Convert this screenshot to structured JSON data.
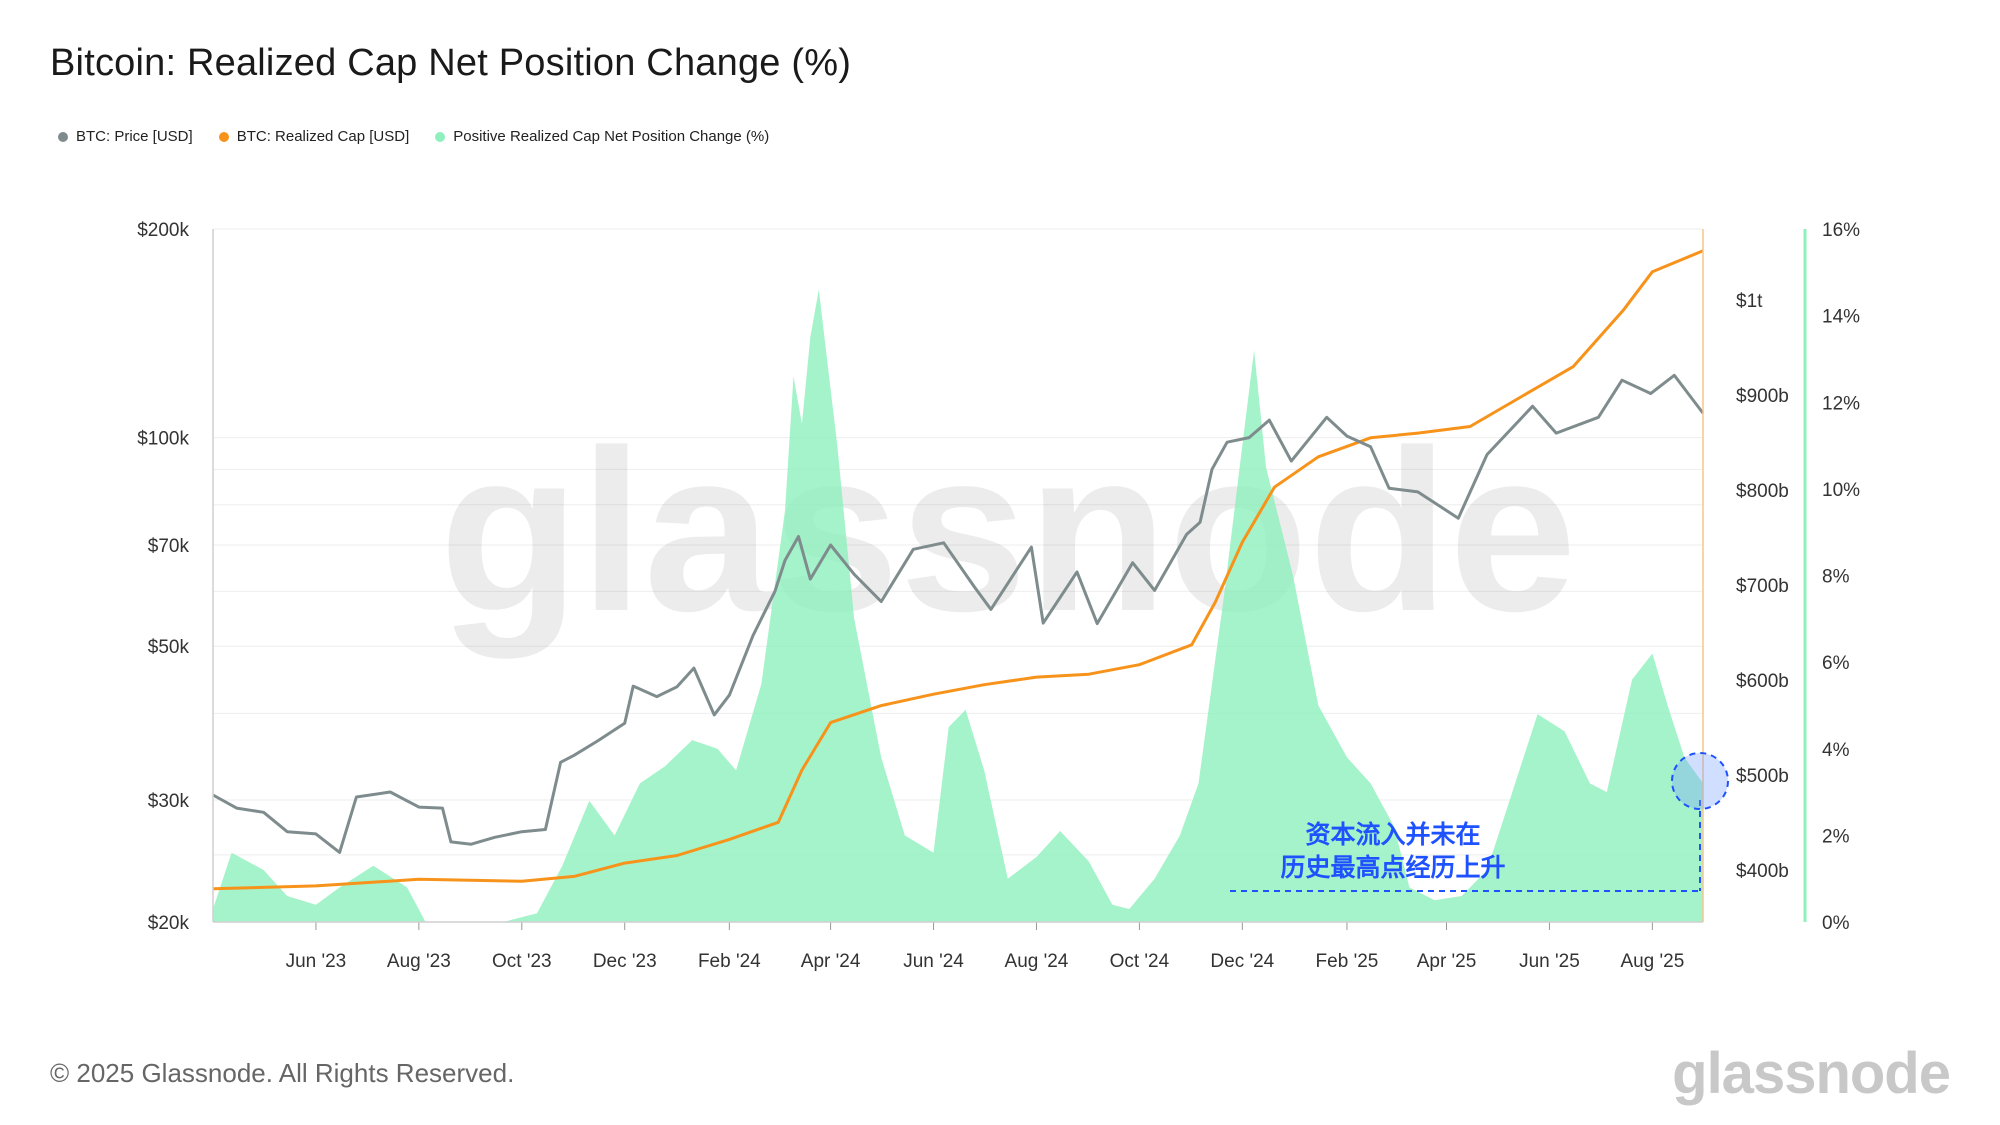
{
  "title": "Bitcoin: Realized Cap Net Position Change (%)",
  "legend": [
    {
      "label": "BTC: Price [USD]",
      "color": "#7f8c8d"
    },
    {
      "label": "BTC: Realized Cap [USD]",
      "color": "#f7931a"
    },
    {
      "label": "Positive Realized Cap Net Position Change (%)",
      "color": "#8ef0bd"
    }
  ],
  "footer": "© 2025 Glassnode. All Rights Reserved.",
  "brand": "glassnode",
  "annotation": {
    "line1": "资本流入并未在",
    "line2": "历史最高点经历上升"
  },
  "chart_data": {
    "type": "line",
    "x_ticks": [
      "Jun '23",
      "Aug '23",
      "Oct '23",
      "Dec '23",
      "Feb '24",
      "Apr '24",
      "Jun '24",
      "Aug '24",
      "Oct '24",
      "Dec '24",
      "Feb '25",
      "Apr '25",
      "Jun '25",
      "Aug '25"
    ],
    "y_left": {
      "scale": "log",
      "ticks": [
        "$20k",
        "$30k",
        "$50k",
        "$70k",
        "$100k",
        "$200k"
      ],
      "tick_values": [
        20000,
        30000,
        50000,
        70000,
        100000,
        200000
      ],
      "range": [
        20000,
        200000
      ]
    },
    "y_right1": {
      "ticks": [
        "$400b",
        "$500b",
        "$600b",
        "$700b",
        "$800b",
        "$900b",
        "$1t"
      ],
      "tick_values": [
        400,
        500,
        600,
        700,
        800,
        900,
        1000
      ],
      "range": [
        345,
        1075
      ],
      "unit": "b USD"
    },
    "y_right2": {
      "ticks": [
        "0%",
        "2%",
        "4%",
        "6%",
        "8%",
        "10%",
        "12%",
        "14%",
        "16%"
      ],
      "tick_values": [
        0,
        2,
        4,
        6,
        8,
        10,
        12,
        14,
        16
      ],
      "range": [
        0,
        16
      ]
    },
    "x_range": [
      "2023-04-01",
      "2025-08-31"
    ],
    "series": [
      {
        "name": "BTC: Price [USD]",
        "axis": "left",
        "color": "#7f8c8d",
        "points": [
          [
            "2023-04-01",
            30500
          ],
          [
            "2023-04-15",
            29200
          ],
          [
            "2023-05-01",
            28800
          ],
          [
            "2023-05-15",
            27000
          ],
          [
            "2023-06-01",
            26800
          ],
          [
            "2023-06-15",
            25200
          ],
          [
            "2023-06-25",
            30300
          ],
          [
            "2023-07-15",
            30800
          ],
          [
            "2023-08-01",
            29300
          ],
          [
            "2023-08-15",
            29200
          ],
          [
            "2023-08-20",
            26100
          ],
          [
            "2023-09-01",
            25900
          ],
          [
            "2023-09-15",
            26500
          ],
          [
            "2023-10-01",
            27000
          ],
          [
            "2023-10-15",
            27200
          ],
          [
            "2023-10-24",
            34000
          ],
          [
            "2023-11-01",
            34800
          ],
          [
            "2023-11-15",
            36500
          ],
          [
            "2023-12-01",
            38700
          ],
          [
            "2023-12-06",
            43800
          ],
          [
            "2023-12-20",
            42300
          ],
          [
            "2024-01-01",
            43700
          ],
          [
            "2024-01-11",
            46500
          ],
          [
            "2024-01-23",
            39800
          ],
          [
            "2024-02-01",
            42500
          ],
          [
            "2024-02-15",
            51800
          ],
          [
            "2024-02-28",
            60000
          ],
          [
            "2024-03-05",
            66500
          ],
          [
            "2024-03-13",
            72000
          ],
          [
            "2024-03-20",
            62500
          ],
          [
            "2024-04-01",
            70000
          ],
          [
            "2024-04-15",
            63500
          ],
          [
            "2024-05-01",
            58000
          ],
          [
            "2024-05-20",
            69000
          ],
          [
            "2024-06-07",
            70500
          ],
          [
            "2024-06-25",
            61000
          ],
          [
            "2024-07-05",
            56500
          ],
          [
            "2024-07-29",
            69500
          ],
          [
            "2024-08-05",
            54000
          ],
          [
            "2024-08-25",
            64000
          ],
          [
            "2024-09-06",
            53900
          ],
          [
            "2024-09-27",
            66000
          ],
          [
            "2024-10-10",
            60200
          ],
          [
            "2024-10-29",
            72500
          ],
          [
            "2024-11-06",
            75500
          ],
          [
            "2024-11-13",
            90000
          ],
          [
            "2024-11-22",
            98500
          ],
          [
            "2024-12-05",
            100000
          ],
          [
            "2024-12-17",
            106000
          ],
          [
            "2024-12-30",
            92500
          ],
          [
            "2025-01-20",
            107000
          ],
          [
            "2025-02-01",
            100500
          ],
          [
            "2025-02-15",
            97000
          ],
          [
            "2025-02-26",
            84500
          ],
          [
            "2025-03-15",
            83500
          ],
          [
            "2025-04-08",
            76500
          ],
          [
            "2025-04-25",
            94500
          ],
          [
            "2025-05-22",
            111000
          ],
          [
            "2025-06-05",
            101500
          ],
          [
            "2025-06-30",
            107000
          ],
          [
            "2025-07-14",
            121000
          ],
          [
            "2025-07-31",
            115800
          ],
          [
            "2025-08-14",
            123000
          ],
          [
            "2025-08-31",
            108500
          ]
        ]
      },
      {
        "name": "BTC: Realized Cap [USD]",
        "axis": "right1",
        "color": "#f7931a",
        "points": [
          [
            "2023-04-01",
            380
          ],
          [
            "2023-06-01",
            383
          ],
          [
            "2023-08-01",
            390
          ],
          [
            "2023-10-01",
            388
          ],
          [
            "2023-11-01",
            393
          ],
          [
            "2023-12-01",
            407
          ],
          [
            "2024-01-01",
            415
          ],
          [
            "2024-02-01",
            432
          ],
          [
            "2024-03-01",
            450
          ],
          [
            "2024-03-15",
            505
          ],
          [
            "2024-04-01",
            555
          ],
          [
            "2024-05-01",
            573
          ],
          [
            "2024-06-01",
            585
          ],
          [
            "2024-07-01",
            595
          ],
          [
            "2024-08-01",
            603
          ],
          [
            "2024-09-01",
            606
          ],
          [
            "2024-10-01",
            616
          ],
          [
            "2024-11-01",
            637
          ],
          [
            "2024-11-15",
            682
          ],
          [
            "2024-12-01",
            745
          ],
          [
            "2024-12-20",
            803
          ],
          [
            "2025-01-15",
            835
          ],
          [
            "2025-02-15",
            855
          ],
          [
            "2025-03-15",
            860
          ],
          [
            "2025-04-15",
            867
          ],
          [
            "2025-05-15",
            898
          ],
          [
            "2025-06-15",
            930
          ],
          [
            "2025-07-15",
            990
          ],
          [
            "2025-08-01",
            1030
          ],
          [
            "2025-08-31",
            1052
          ]
        ]
      },
      {
        "name": "Positive Realized Cap Net Position Change (%)",
        "axis": "right2",
        "color": "#8ef0bd",
        "points": [
          [
            "2023-04-01",
            0.3
          ],
          [
            "2023-04-12",
            1.6
          ],
          [
            "2023-05-01",
            1.2
          ],
          [
            "2023-05-15",
            0.6
          ],
          [
            "2023-06-01",
            0.4
          ],
          [
            "2023-06-15",
            0.8
          ],
          [
            "2023-07-05",
            1.3
          ],
          [
            "2023-07-25",
            0.8
          ],
          [
            "2023-08-05",
            0.0
          ],
          [
            "2023-09-20",
            0.0
          ],
          [
            "2023-10-10",
            0.2
          ],
          [
            "2023-10-25",
            1.3
          ],
          [
            "2023-11-10",
            2.8
          ],
          [
            "2023-11-25",
            2.0
          ],
          [
            "2023-12-10",
            3.2
          ],
          [
            "2023-12-25",
            3.6
          ],
          [
            "2024-01-10",
            4.2
          ],
          [
            "2024-01-25",
            4.0
          ],
          [
            "2024-02-05",
            3.5
          ],
          [
            "2024-02-20",
            5.5
          ],
          [
            "2024-03-05",
            9.5
          ],
          [
            "2024-03-10",
            12.6
          ],
          [
            "2024-03-15",
            11.5
          ],
          [
            "2024-03-20",
            13.5
          ],
          [
            "2024-03-25",
            14.6
          ],
          [
            "2024-04-05",
            11.0
          ],
          [
            "2024-04-15",
            7.0
          ],
          [
            "2024-05-01",
            3.8
          ],
          [
            "2024-05-15",
            2.0
          ],
          [
            "2024-06-01",
            1.6
          ],
          [
            "2024-06-10",
            4.5
          ],
          [
            "2024-06-20",
            4.9
          ],
          [
            "2024-07-01",
            3.5
          ],
          [
            "2024-07-15",
            1.0
          ],
          [
            "2024-08-01",
            1.5
          ],
          [
            "2024-08-15",
            2.1
          ],
          [
            "2024-09-01",
            1.4
          ],
          [
            "2024-09-15",
            0.4
          ],
          [
            "2024-09-25",
            0.3
          ],
          [
            "2024-10-10",
            1.0
          ],
          [
            "2024-10-25",
            2.0
          ],
          [
            "2024-11-05",
            3.2
          ],
          [
            "2024-11-20",
            7.5
          ],
          [
            "2024-12-01",
            11.0
          ],
          [
            "2024-12-08",
            13.2
          ],
          [
            "2024-12-15",
            10.5
          ],
          [
            "2024-12-31",
            8.0
          ],
          [
            "2025-01-15",
            5.0
          ],
          [
            "2025-02-01",
            3.8
          ],
          [
            "2025-02-15",
            3.2
          ],
          [
            "2025-03-01",
            2.2
          ],
          [
            "2025-03-10",
            0.8
          ],
          [
            "2025-03-25",
            0.5
          ],
          [
            "2025-04-10",
            0.6
          ],
          [
            "2025-04-25",
            1.2
          ],
          [
            "2025-05-10",
            3.0
          ],
          [
            "2025-05-25",
            4.8
          ],
          [
            "2025-06-10",
            4.4
          ],
          [
            "2025-06-25",
            3.2
          ],
          [
            "2025-07-05",
            3.0
          ],
          [
            "2025-07-20",
            5.6
          ],
          [
            "2025-08-01",
            6.2
          ],
          [
            "2025-08-10",
            5.0
          ],
          [
            "2025-08-20",
            3.8
          ],
          [
            "2025-08-31",
            3.2
          ]
        ]
      }
    ],
    "grid": true,
    "legend_position": "top-left"
  }
}
